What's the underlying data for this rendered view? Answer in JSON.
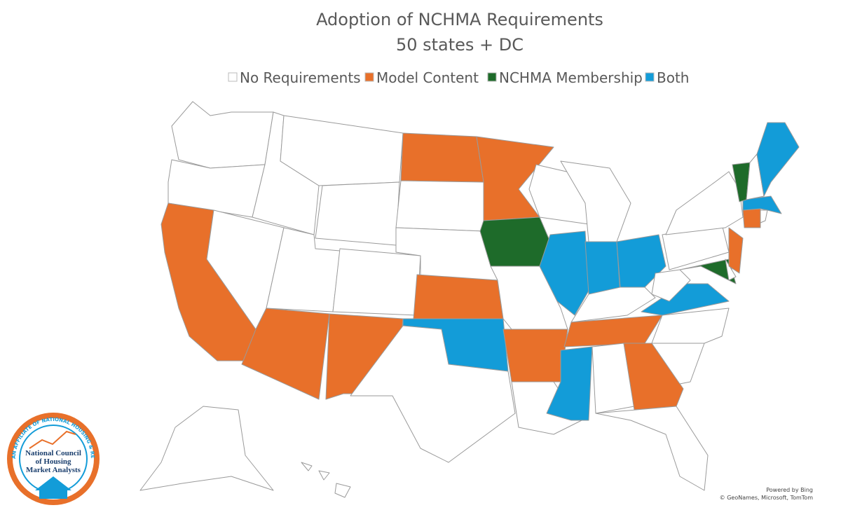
{
  "title": "Adoption of NCHMA Requirements",
  "subtitle": "50 states + DC",
  "legend": [
    {
      "label": "No Requirements",
      "color": "#ffffff"
    },
    {
      "label": "Model Content",
      "color": "#e8702a"
    },
    {
      "label": "NCHMA Membership",
      "color": "#1e6b2a"
    },
    {
      "label": "Both",
      "color": "#139cd8"
    }
  ],
  "logo": {
    "ring_text": "AN AFFILIATE OF NATIONAL HOUSING & REHABILITATION ASSOCIATION",
    "name": [
      "National Council",
      "of Housing",
      "Market Analysts"
    ]
  },
  "attribution": [
    "Powered by Bing",
    "© GeoNames, Microsoft, TomTom"
  ]
}
